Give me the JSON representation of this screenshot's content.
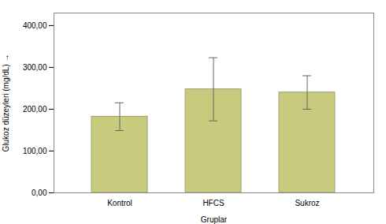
{
  "chart_data": {
    "type": "bar",
    "categories": [
      "Kontrol",
      "HFCS",
      "Sukroz"
    ],
    "values": [
      182.1,
      247.6,
      240.0
    ],
    "errors": [
      33.14,
      75.49,
      40.0
    ],
    "color": "#c8ca7e",
    "xlabel": "Gruplar",
    "ylabel": "Glukoz düzeyleri (mg/dL)",
    "ylim": [
      0,
      430
    ],
    "yticks": [
      {
        "value": 0,
        "label": "0,00"
      },
      {
        "value": 100,
        "label": "100,00"
      },
      {
        "value": 200,
        "label": "200,00"
      },
      {
        "value": 300,
        "label": "300,00"
      },
      {
        "value": 400,
        "label": "400,00"
      }
    ],
    "grid": false
  }
}
